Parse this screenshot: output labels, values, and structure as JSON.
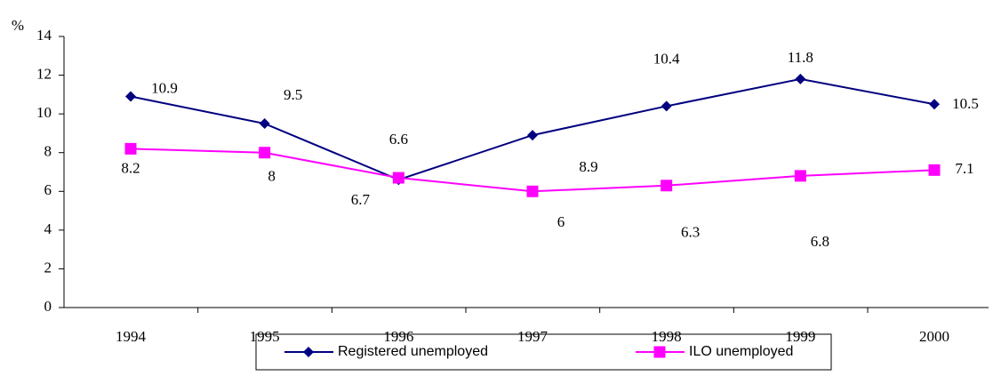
{
  "chart_data": {
    "type": "line",
    "y_label": "%",
    "categories": [
      "1994",
      "1995",
      "1996",
      "1997",
      "1998",
      "1999",
      "2000"
    ],
    "series": [
      {
        "name": "Registered unemployed",
        "color": "#000080",
        "marker": "diamond",
        "values": [
          10.9,
          9.5,
          6.6,
          8.9,
          10.4,
          11.8,
          10.5
        ]
      },
      {
        "name": "ILO unemployed",
        "color": "#ff00ff",
        "marker": "square",
        "values": [
          8.2,
          8,
          6.7,
          6,
          6.3,
          6.8,
          7.1
        ]
      }
    ],
    "ylim": [
      0,
      14
    ],
    "yticks": [
      0,
      2,
      4,
      6,
      8,
      10,
      12,
      14
    ],
    "legend": "bottom"
  }
}
